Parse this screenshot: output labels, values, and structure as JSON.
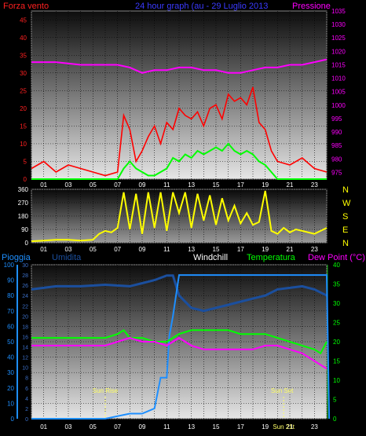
{
  "colors": {
    "wind": "#ff0000",
    "gust": "#00ff00",
    "pressure": "#ff00ff",
    "winddir": "#ffff00",
    "humidity": "#1b4f9e",
    "windchill": "#ffffff",
    "temp": "#00ff00",
    "dew": "#ff00ff",
    "rain": "#1e8fff",
    "sun": "#ffff66"
  },
  "header": {
    "left": "Forza vento",
    "center": "24 hour graph (au - 29 Luglio 2013",
    "right": "Pressione"
  },
  "hours": [
    "01",
    "03",
    "05",
    "07",
    "09",
    "11",
    "13",
    "15",
    "17",
    "19",
    "21",
    "23"
  ],
  "panel1": {
    "left_ticks": [
      "0",
      "5",
      "10",
      "15",
      "20",
      "25",
      "30",
      "35",
      "40",
      "45"
    ],
    "right_ticks": [
      "975",
      "980",
      "985",
      "990",
      "995",
      "1000",
      "1005",
      "1010",
      "1015",
      "1020",
      "1025",
      "1030",
      "1035"
    ],
    "ylim_left": [
      0,
      47.5
    ],
    "ylim_right": [
      972.5,
      1035
    ]
  },
  "panel2": {
    "left_ticks": [
      "0",
      "90",
      "180",
      "270",
      "360"
    ],
    "compass": [
      "N",
      "W",
      "S",
      "E",
      "N"
    ],
    "ylim": [
      0,
      360
    ]
  },
  "panel3": {
    "labels": {
      "rain": "Pioggia",
      "humidity": "Umidita",
      "windchill": "Windchill",
      "temp": "Temperatura",
      "dew": "Dew Point (°C)"
    },
    "left_ticks": [
      "0",
      "10",
      "20",
      "30",
      "40",
      "50",
      "60",
      "70",
      "80",
      "90",
      "100"
    ],
    "left2_ticks": [
      "0",
      "2",
      "4",
      "6",
      "8",
      "10",
      "12",
      "14",
      "16",
      "18",
      "20",
      "22",
      "24",
      "26",
      "28",
      "30"
    ],
    "right_ticks": [
      "0",
      "5",
      "10",
      "15",
      "20",
      "25",
      "30",
      "35",
      "40"
    ],
    "sunrise": "Sun Rise",
    "sunset": "Sun Set",
    "sunset_tick": "Sun 21t"
  },
  "chart_data": [
    {
      "type": "line",
      "title": "24 hour graph (au - 29 Luglio 2013",
      "x_unit": "hour",
      "series": [
        {
          "name": "Forza vento",
          "axis": "left",
          "x": [
            0,
            1,
            2,
            3,
            4,
            5,
            6,
            7,
            7.5,
            8,
            8.5,
            9,
            9.5,
            10,
            10.5,
            11,
            11.5,
            12,
            12.5,
            13,
            13.5,
            14,
            14.5,
            15,
            15.5,
            16,
            16.5,
            17,
            17.5,
            18,
            18.5,
            19,
            19.5,
            20,
            21,
            22,
            23,
            24
          ],
          "values": [
            3,
            5,
            2,
            4,
            3,
            2,
            1,
            2,
            18,
            14,
            5,
            8,
            12,
            15,
            10,
            16,
            14,
            20,
            18,
            17,
            19,
            15,
            20,
            21,
            17,
            24,
            22,
            23,
            21,
            26,
            16,
            14,
            8,
            5,
            4,
            6,
            3,
            2
          ]
        },
        {
          "name": "",
          "axis": "left",
          "x": [
            0,
            6,
            7,
            7.5,
            8,
            8.5,
            9,
            9.5,
            10,
            10.5,
            11,
            11.5,
            12,
            12.5,
            13,
            13.5,
            14,
            14.5,
            15,
            15.5,
            16,
            16.5,
            17,
            17.5,
            18,
            18.5,
            19,
            19.5,
            20,
            24
          ],
          "values": [
            0,
            0,
            0,
            3,
            5,
            3,
            2,
            1,
            1,
            2,
            3,
            6,
            5,
            7,
            6,
            8,
            7,
            8,
            9,
            8,
            10,
            8,
            7,
            8,
            7,
            5,
            4,
            2,
            0,
            0
          ]
        },
        {
          "name": "Pressione",
          "axis": "right",
          "x": [
            0,
            2,
            4,
            6,
            7,
            8,
            9,
            10,
            11,
            12,
            13,
            14,
            15,
            16,
            17,
            18,
            19,
            20,
            21,
            22,
            23,
            24
          ],
          "values": [
            1016,
            1016,
            1015,
            1015,
            1015,
            1014,
            1012,
            1013,
            1013,
            1014,
            1014,
            1013,
            1013,
            1012,
            1012,
            1013,
            1014,
            1014,
            1015,
            1015,
            1016,
            1017
          ]
        }
      ]
    },
    {
      "type": "line",
      "x_unit": "hour",
      "series": [
        {
          "name": "",
          "axis": "left",
          "x": [
            0,
            1,
            2,
            3,
            4,
            5,
            5.5,
            6,
            6.5,
            7,
            7.5,
            8,
            8.5,
            9,
            9.5,
            10,
            10.5,
            11,
            11.5,
            12,
            12.5,
            13,
            13.5,
            14,
            14.5,
            15,
            15.5,
            16,
            16.5,
            17,
            17.5,
            18,
            18.5,
            19,
            19.5,
            20,
            20.5,
            21,
            21.5,
            22,
            23,
            24
          ],
          "values": [
            10,
            15,
            20,
            20,
            15,
            20,
            60,
            80,
            70,
            100,
            340,
            90,
            330,
            60,
            340,
            100,
            340,
            80,
            340,
            200,
            340,
            100,
            330,
            150,
            320,
            120,
            300,
            150,
            250,
            130,
            200,
            120,
            140,
            350,
            80,
            60,
            100,
            70,
            90,
            80,
            60,
            100
          ]
        }
      ]
    },
    {
      "type": "line",
      "x_unit": "hour",
      "series": [
        {
          "name": "Umidita",
          "axis": "left_percent",
          "x": [
            0,
            2,
            4,
            6,
            8,
            9,
            10,
            11,
            11.5,
            12,
            13,
            14,
            15,
            16,
            17,
            18,
            19,
            20,
            21,
            22,
            23,
            23.5,
            24
          ],
          "values": [
            84,
            86,
            86,
            87,
            86,
            88,
            90,
            93,
            93,
            80,
            72,
            70,
            72,
            74,
            76,
            78,
            80,
            84,
            85,
            86,
            84,
            82,
            80
          ]
        },
        {
          "name": "Temperatura",
          "axis": "right",
          "x": [
            0,
            2,
            4,
            6,
            7,
            7.5,
            8,
            9,
            10,
            11,
            12,
            13,
            14,
            15,
            16,
            17,
            18,
            19,
            20,
            21,
            22,
            23,
            23.5,
            24
          ],
          "values": [
            21,
            21,
            21,
            21,
            22,
            23,
            21,
            21,
            20,
            20,
            22,
            23,
            23,
            23,
            23,
            22,
            22,
            22,
            21,
            20,
            19,
            18,
            17,
            20
          ]
        },
        {
          "name": "Dew Point (°C)",
          "axis": "right",
          "x": [
            0,
            2,
            4,
            6,
            7,
            8,
            9,
            10,
            11,
            12,
            13,
            14,
            15,
            16,
            17,
            18,
            19,
            20,
            21,
            22,
            23,
            24
          ],
          "values": [
            19,
            19,
            19,
            19,
            20,
            21,
            20,
            20,
            19,
            21,
            19,
            18,
            18,
            18,
            18,
            18,
            19,
            19,
            18,
            17,
            15,
            13
          ]
        },
        {
          "name": "Pioggia",
          "axis": "left2",
          "x": [
            0,
            6,
            8,
            9,
            10,
            10.5,
            11,
            11.2,
            11.5,
            12,
            24,
            24.2
          ],
          "values": [
            0,
            0,
            1,
            1,
            2,
            8,
            8,
            16,
            20,
            28,
            28,
            0
          ]
        }
      ]
    }
  ]
}
